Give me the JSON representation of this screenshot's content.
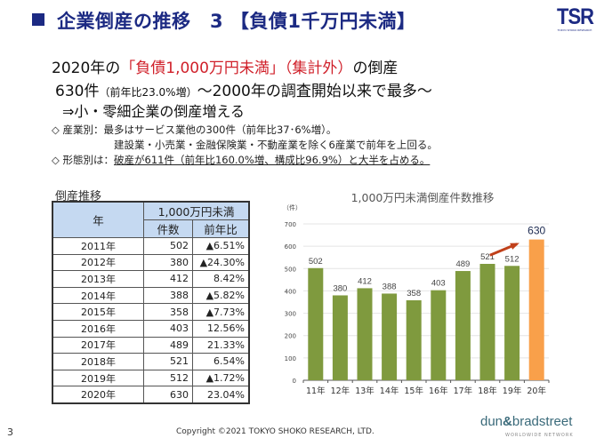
{
  "header": {
    "title": "企業倒産の推移　3 【負債1千万円未満】",
    "logo": "TSR",
    "logo_sub": "TOKYO SHOKO RESEARCH"
  },
  "summary": {
    "line1_prefix": "2020年の",
    "line1_highlight": "「負債1,000万円未満」（集計外）",
    "line1_suffix": "の倒産",
    "line2_main": "630件",
    "line2_small": "（前年比23.0%増）",
    "line2_suffix": "～2000年の調査開始以来で最多～",
    "line3": "⇒小・零細企業の倒産増える"
  },
  "bullets": {
    "industry_label": "◇ 産業別：",
    "industry_text": "最多はサービス業他の300件（前年比37･6%増）。",
    "industry_text2": "建設業・小売業・金融保険業・不動産業を除く6産業で前年を上回る。",
    "form_label": "◇ 形態別は：",
    "form_text": "破産が611件（前年比160.0%増、構成比96.9%）と大半を占める。"
  },
  "table": {
    "title": "倒産推移",
    "header_year": "年",
    "header_group": "1,000万円未満",
    "header_count": "件数",
    "header_change": "前年比",
    "rows": [
      {
        "year": "2011年",
        "count": "502",
        "change": "▲6.51%"
      },
      {
        "year": "2012年",
        "count": "380",
        "change": "▲24.30%"
      },
      {
        "year": "2013年",
        "count": "412",
        "change": "8.42%"
      },
      {
        "year": "2014年",
        "count": "388",
        "change": "▲5.82%"
      },
      {
        "year": "2015年",
        "count": "358",
        "change": "▲7.73%"
      },
      {
        "year": "2016年",
        "count": "403",
        "change": "12.56%"
      },
      {
        "year": "2017年",
        "count": "489",
        "change": "21.33%"
      },
      {
        "year": "2018年",
        "count": "521",
        "change": "6.54%"
      },
      {
        "year": "2019年",
        "count": "512",
        "change": "▲1.72%"
      },
      {
        "year": "2020年",
        "count": "630",
        "change": "23.04%"
      }
    ]
  },
  "chart_data": {
    "type": "bar",
    "title": "1,000万円未満倒産件数推移",
    "ylabel": "（件）",
    "xlabel": "",
    "categories": [
      "11年",
      "12年",
      "13年",
      "14年",
      "15年",
      "16年",
      "17年",
      "18年",
      "19年",
      "20年"
    ],
    "values": [
      502,
      380,
      412,
      388,
      358,
      403,
      489,
      521,
      512,
      630
    ],
    "ylim": [
      0,
      700
    ],
    "yticks": [
      0,
      100,
      200,
      300,
      400,
      500,
      600,
      700
    ],
    "grid": true,
    "colors": {
      "default": "#7f9a3e",
      "highlight": "#f9a04a",
      "arrow": "#c0401a"
    },
    "highlight_index": 9,
    "annotation": "arrow pointing to 630"
  },
  "footer": {
    "page": "3",
    "copyright": "Copyright ©2021  TOKYO SHOKO RESEARCH, LTD.",
    "partner_left": "dun",
    "partner_amp": "&",
    "partner_right": "bradstreet",
    "partner_sub": "WORLDWIDE NETWORK"
  }
}
